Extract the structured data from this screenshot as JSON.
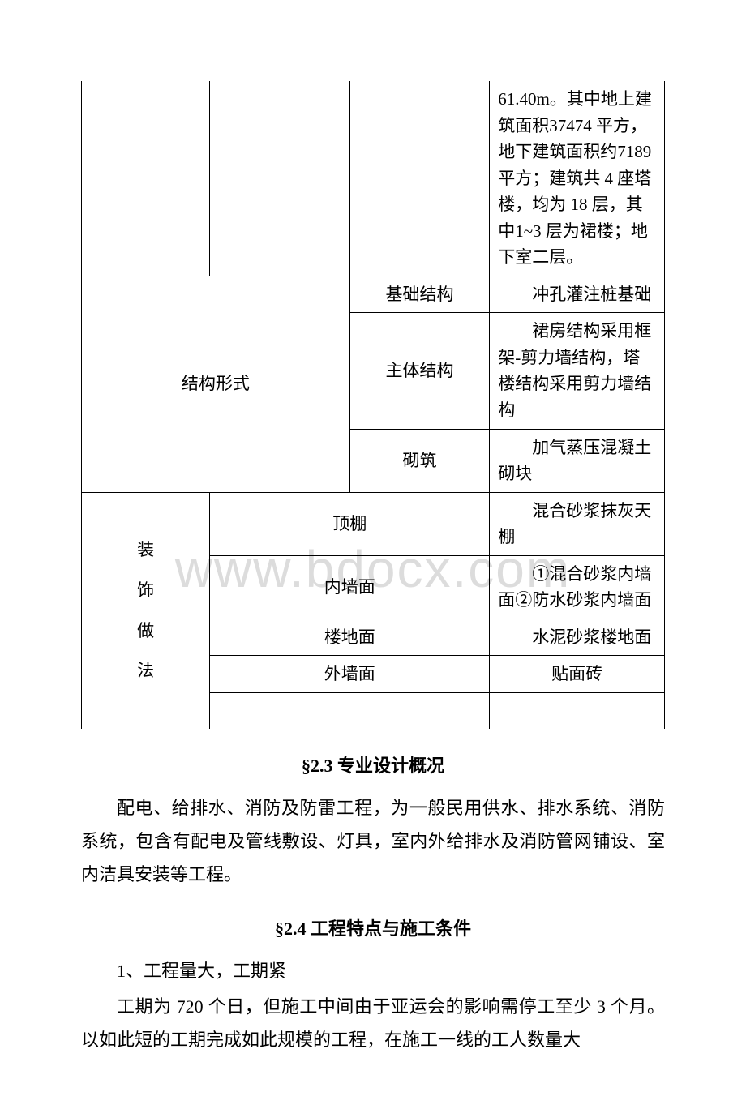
{
  "watermark": "www.bdocx.com",
  "table": {
    "topDesc": "61.40m。其中地上建筑面积37474 平方，地下建筑面积约7189 平方；建筑共 4 座塔楼，均为 18 层，其中1~3 层为裙楼；地下室二层。",
    "structure": {
      "label": "结构形式",
      "rows": [
        {
          "sub": "基础结构",
          "val": "冲孔灌注桩基础"
        },
        {
          "sub": "主体结构",
          "val": "裙房结构采用框架-剪力墙结构，塔楼结构采用剪力墙结构"
        },
        {
          "sub": "砌筑",
          "val": "加气蒸压混凝土砌块"
        }
      ]
    },
    "deco": {
      "labelChars": [
        "装",
        "饰",
        "做",
        "法"
      ],
      "rows": [
        {
          "sub": "顶棚",
          "val": "混合砂浆抹灰天棚"
        },
        {
          "sub": "内墙面",
          "val": "①混合砂浆内墙面②防水砂浆内墙面"
        },
        {
          "sub": "楼地面",
          "val": "水泥砂浆楼地面"
        },
        {
          "sub": "外墙面",
          "val": "贴面砖"
        }
      ]
    }
  },
  "sections": {
    "s23": {
      "title": "§2.3 专业设计概况",
      "p1": "配电、给排水、消防及防雷工程，为一般民用供水、排水系统、消防系统，包含有配电及管线敷设、灯具，室内外给排水及消防管网铺设、室内洁具安装等工程。"
    },
    "s24": {
      "title": "§2.4 工程特点与施工条件",
      "p1": "1、工程量大，工期紧",
      "p2": "工期为 720 个日，但施工中间由于亚运会的影响需停工至少 3 个月。以如此短的工期完成如此规模的工程，在施工一线的工人数量大"
    }
  }
}
